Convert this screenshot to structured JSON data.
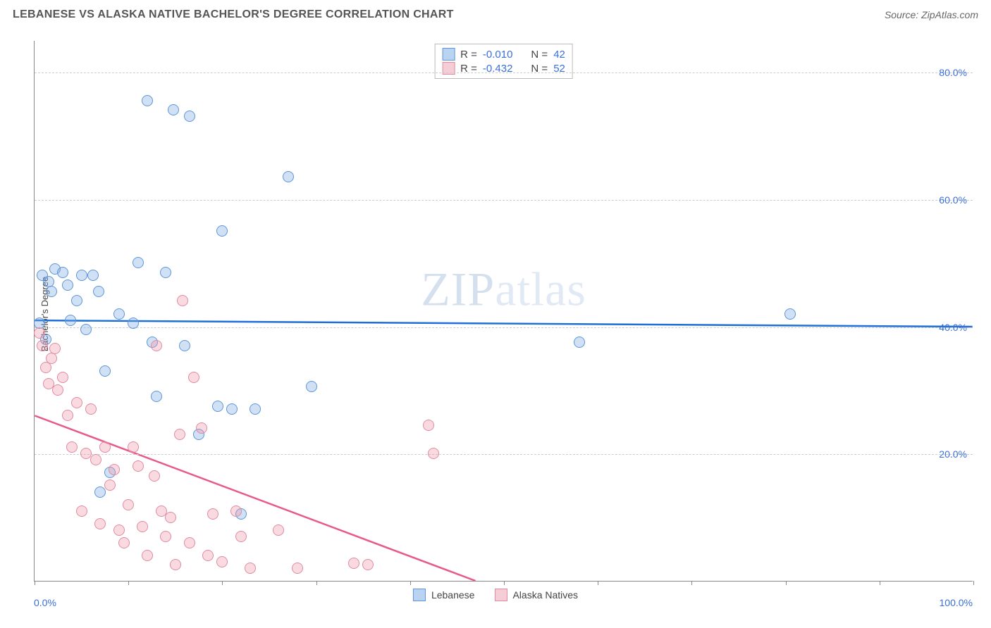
{
  "title": "LEBANESE VS ALASKA NATIVE BACHELOR'S DEGREE CORRELATION CHART",
  "source": "Source: ZipAtlas.com",
  "ylabel": "Bachelor's Degree",
  "watermark": {
    "part1": "ZIP",
    "part2": "atlas"
  },
  "chart": {
    "type": "scatter",
    "xlim": [
      0,
      100
    ],
    "ylim": [
      0,
      85
    ],
    "yticks": [
      {
        "v": 20,
        "label": "20.0%"
      },
      {
        "v": 40,
        "label": "40.0%"
      },
      {
        "v": 60,
        "label": "60.0%"
      },
      {
        "v": 80,
        "label": "80.0%"
      }
    ],
    "xtick_positions": [
      0,
      10,
      20,
      30,
      40,
      50,
      60,
      70,
      80,
      90,
      100
    ],
    "xaxis_left_label": "0.0%",
    "xaxis_right_label": "100.0%",
    "background_color": "#ffffff",
    "grid_color": "#cccccc",
    "marker_radius": 8,
    "marker_stroke_width": 1,
    "trend_line_width": 2.5,
    "series": [
      {
        "name": "Lebanese",
        "fill": "rgba(120, 170, 230, 0.35)",
        "stroke": "#5e95d6",
        "swatch_fill": "#b9d3f0",
        "swatch_border": "#5e95d6",
        "trend_color": "#1e6fd8",
        "R": "-0.010",
        "N": "42",
        "trend": {
          "x1": 0,
          "y1": 41,
          "x2": 100,
          "y2": 40
        },
        "points": [
          [
            0.5,
            40.5
          ],
          [
            0.8,
            48
          ],
          [
            1.2,
            38
          ],
          [
            1.5,
            47
          ],
          [
            1.8,
            45.5
          ],
          [
            2.2,
            49
          ],
          [
            3.0,
            48.5
          ],
          [
            3.5,
            46.5
          ],
          [
            3.8,
            41
          ],
          [
            4.5,
            44
          ],
          [
            5.0,
            48
          ],
          [
            5.5,
            39.5
          ],
          [
            6.2,
            48
          ],
          [
            6.8,
            45.5
          ],
          [
            7.0,
            14
          ],
          [
            7.5,
            33
          ],
          [
            8.0,
            17
          ],
          [
            9.0,
            42
          ],
          [
            10.5,
            40.5
          ],
          [
            11.0,
            50
          ],
          [
            12.0,
            75.5
          ],
          [
            12.5,
            37.5
          ],
          [
            13.0,
            29
          ],
          [
            14.0,
            48.5
          ],
          [
            14.8,
            74
          ],
          [
            16.0,
            37
          ],
          [
            16.5,
            73
          ],
          [
            17.5,
            23
          ],
          [
            19.5,
            27.5
          ],
          [
            20.0,
            55
          ],
          [
            21.0,
            27
          ],
          [
            22.0,
            10.5
          ],
          [
            23.5,
            27
          ],
          [
            27.0,
            63.5
          ],
          [
            29.5,
            30.5
          ],
          [
            58.0,
            37.5
          ],
          [
            80.5,
            42
          ]
        ]
      },
      {
        "name": "Alaska Natives",
        "fill": "rgba(240, 150, 170, 0.35)",
        "stroke": "#e08aa0",
        "swatch_fill": "#f5cdd6",
        "swatch_border": "#e08aa0",
        "trend_color": "#e85a8a",
        "R": "-0.432",
        "N": "52",
        "trend": {
          "x1": 0,
          "y1": 26,
          "x2": 47,
          "y2": 0
        },
        "points": [
          [
            0.5,
            39
          ],
          [
            0.8,
            37
          ],
          [
            1.2,
            33.5
          ],
          [
            1.5,
            31
          ],
          [
            1.8,
            35
          ],
          [
            2.2,
            36.5
          ],
          [
            2.5,
            30
          ],
          [
            3.0,
            32
          ],
          [
            3.5,
            26
          ],
          [
            4.0,
            21
          ],
          [
            4.5,
            28
          ],
          [
            5.0,
            11
          ],
          [
            5.5,
            20
          ],
          [
            6.0,
            27
          ],
          [
            6.5,
            19
          ],
          [
            7.0,
            9
          ],
          [
            7.5,
            21
          ],
          [
            8.0,
            15
          ],
          [
            8.5,
            17.5
          ],
          [
            9.0,
            8
          ],
          [
            9.5,
            6
          ],
          [
            10.0,
            12
          ],
          [
            10.5,
            21
          ],
          [
            11.0,
            18
          ],
          [
            11.5,
            8.5
          ],
          [
            12.0,
            4
          ],
          [
            12.8,
            16.5
          ],
          [
            13.0,
            37
          ],
          [
            13.5,
            11
          ],
          [
            14.0,
            7
          ],
          [
            14.5,
            10
          ],
          [
            15.0,
            2.5
          ],
          [
            15.5,
            23
          ],
          [
            15.8,
            44
          ],
          [
            16.5,
            6
          ],
          [
            17.0,
            32
          ],
          [
            17.8,
            24
          ],
          [
            18.5,
            4
          ],
          [
            19.0,
            10.5
          ],
          [
            20.0,
            3
          ],
          [
            21.5,
            11
          ],
          [
            22.0,
            7
          ],
          [
            23.0,
            2
          ],
          [
            26.0,
            8
          ],
          [
            28.0,
            2
          ],
          [
            34.0,
            2.8
          ],
          [
            35.5,
            2.5
          ],
          [
            42.0,
            24.5
          ],
          [
            42.5,
            20
          ]
        ]
      }
    ]
  },
  "legend_top": {
    "r_label": "R =",
    "n_label": "N ="
  },
  "legend_bottom": [
    {
      "label": "Lebanese",
      "fill": "#b9d3f0",
      "border": "#5e95d6"
    },
    {
      "label": "Alaska Natives",
      "fill": "#f5cdd6",
      "border": "#e08aa0"
    }
  ]
}
